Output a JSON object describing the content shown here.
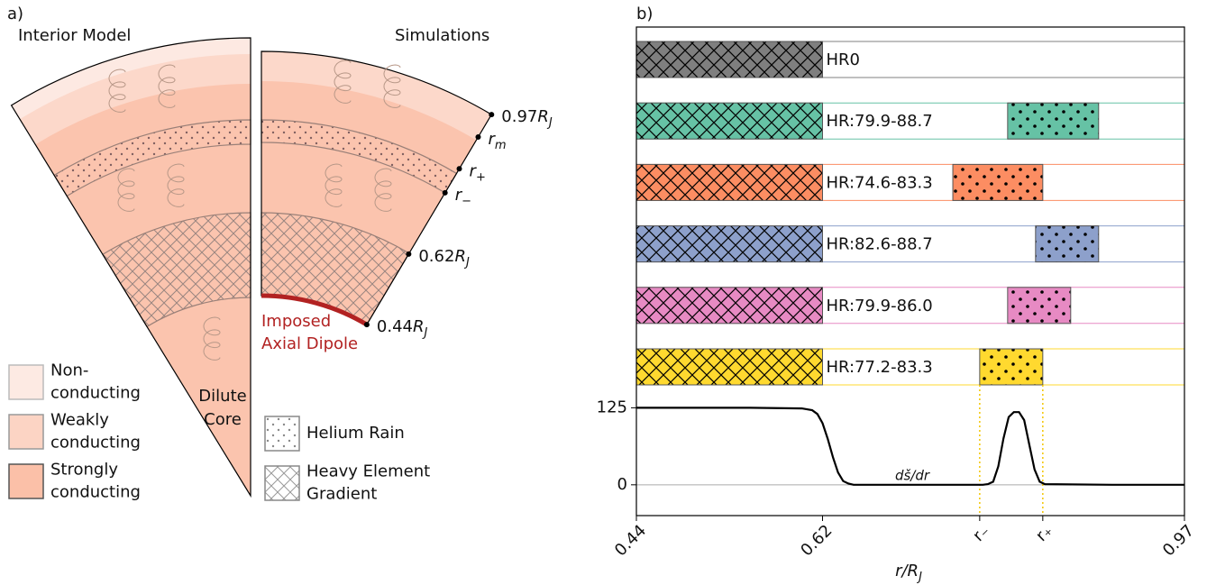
{
  "panel_a": {
    "label": "a)",
    "left_title": "Interior Model",
    "right_title": "Simulations",
    "core_label": [
      "Dilute",
      "Core"
    ],
    "dipole_label": [
      "Imposed",
      "Axial Dipole"
    ],
    "radius_labels": [
      {
        "text": "0.97",
        "unit": "R",
        "sub": "J"
      },
      {
        "text": "r",
        "sub": "m"
      },
      {
        "text": "r",
        "sub": "+"
      },
      {
        "text": "r",
        "sub": "−"
      },
      {
        "text": "0.62",
        "unit": "R",
        "sub": "J"
      },
      {
        "text": "0.44",
        "unit": "R",
        "sub": "J"
      }
    ],
    "legend": [
      {
        "lines": [
          "Non-",
          "conducting"
        ]
      },
      {
        "lines": [
          "Weakly",
          "conducting"
        ]
      },
      {
        "lines": [
          "Strongly",
          "conducting"
        ]
      },
      {
        "lines": [
          "Helium Rain"
        ]
      },
      {
        "lines": [
          "Heavy Element",
          "Gradient"
        ]
      }
    ]
  },
  "chart_data": {
    "type": "line",
    "panel_label": "b)",
    "x_label": {
      "main": "r/R",
      "sub": "J"
    },
    "annotation": "dš/dr",
    "xlim": [
      0.44,
      0.97
    ],
    "xticks": [
      0.44,
      0.62,
      {
        "value": 0.772,
        "label": "r₋"
      },
      {
        "value": 0.833,
        "label": "r₊"
      },
      0.97
    ],
    "ylim": [
      -50,
      130
    ],
    "yticks": [
      0,
      125
    ],
    "series": [
      {
        "name": "HR0",
        "color": "#7f7f7f",
        "hatch": [
          0.44,
          0.62
        ],
        "rain": null
      },
      {
        "name": "HR:79.9-88.7",
        "color": "#66c2a5",
        "hatch": [
          0.44,
          0.62
        ],
        "rain": [
          0.799,
          0.887
        ]
      },
      {
        "name": "HR:74.6-83.3",
        "color": "#fc8d62",
        "hatch": [
          0.44,
          0.62
        ],
        "rain": [
          0.746,
          0.833
        ]
      },
      {
        "name": "HR:82.6-88.7",
        "color": "#8da0cb",
        "hatch": [
          0.44,
          0.62
        ],
        "rain": [
          0.826,
          0.887
        ]
      },
      {
        "name": "HR:79.9-86.0",
        "color": "#e78ac3",
        "hatch": [
          0.44,
          0.62
        ],
        "rain": [
          0.799,
          0.86
        ]
      },
      {
        "name": "HR:77.2-83.3",
        "color": "#ffd92f",
        "hatch": [
          0.44,
          0.62
        ],
        "rain": [
          0.772,
          0.833
        ]
      }
    ],
    "curve": {
      "color": "#000000",
      "x": [
        0.44,
        0.55,
        0.6,
        0.61,
        0.615,
        0.62,
        0.625,
        0.63,
        0.635,
        0.64,
        0.645,
        0.65,
        0.7,
        0.775,
        0.78,
        0.785,
        0.79,
        0.795,
        0.8,
        0.805,
        0.81,
        0.815,
        0.82,
        0.825,
        0.83,
        0.835,
        0.9,
        0.97
      ],
      "y": [
        125,
        125,
        124,
        121,
        115,
        100,
        75,
        45,
        20,
        6,
        2,
        0,
        0,
        0,
        1,
        5,
        30,
        75,
        110,
        118,
        118,
        105,
        65,
        25,
        5,
        1,
        0,
        0
      ]
    }
  }
}
